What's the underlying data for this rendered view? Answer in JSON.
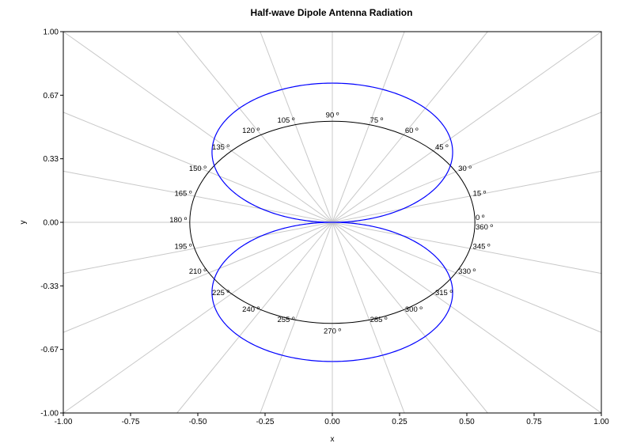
{
  "chart_data": {
    "type": "line",
    "title": "Half-wave Dipole Antenna Radiation",
    "xlabel": "x",
    "ylabel": "y",
    "xlim": [
      -1.0,
      1.0
    ],
    "ylim": [
      -1.0,
      1.0
    ],
    "x_ticks": [
      "-1.00",
      "-0.75",
      "-0.50",
      "-0.25",
      "0.00",
      "0.25",
      "0.50",
      "0.75",
      "1.00"
    ],
    "y_ticks": [
      "1.00",
      "0.67",
      "0.33",
      "0.00",
      "-0.33",
      "-0.67",
      "-1.00"
    ],
    "grid": true,
    "reference_circle_radius": 0.53,
    "angle_labels": [
      "0 º",
      "15 º",
      "30 º",
      "45 º",
      "60 º",
      "75 º",
      "90 º",
      "105 º",
      "120 º",
      "135 º",
      "150 º",
      "165 º",
      "180 º",
      "195 º",
      "210 º",
      "225 º",
      "240 º",
      "255 º",
      "270 º",
      "285 º",
      "300 º",
      "315 º",
      "330 º",
      "345 º",
      "360 º"
    ],
    "series": [
      {
        "color": "#0000ff",
        "function": "half-wave dipole pattern cos(pi/2·cos(theta))/sin(theta), lobes along x-axis, peak 1.0 at 0º and 180º, null at 90º and 270º"
      }
    ],
    "colors": {
      "pattern": "#0000ff",
      "circle": "#000000",
      "grid": "#c8c8c8",
      "axes": "#000000"
    }
  }
}
